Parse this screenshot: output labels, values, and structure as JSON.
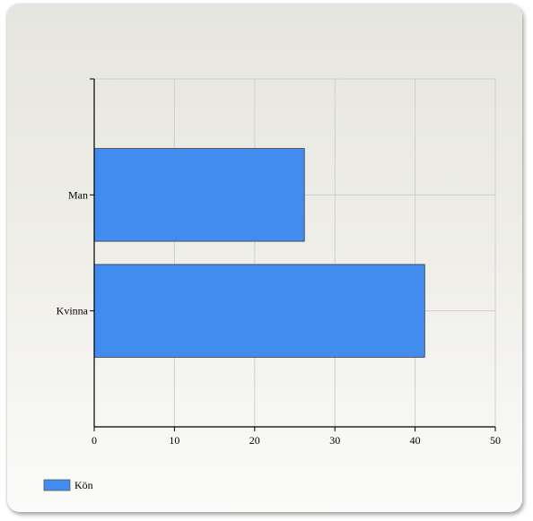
{
  "chart_data": {
    "type": "bar",
    "orientation": "horizontal",
    "title": "",
    "xlabel": "",
    "ylabel": "",
    "categories": [
      "Man",
      "Kvinna"
    ],
    "series": [
      {
        "name": "Kön",
        "values": [
          26.2,
          41.2
        ],
        "color": "#428bef"
      }
    ],
    "xlim": [
      0,
      50
    ],
    "x_ticks": [
      0,
      10,
      20,
      30,
      40,
      50
    ],
    "grid": true,
    "legend_position": "bottom-left"
  }
}
